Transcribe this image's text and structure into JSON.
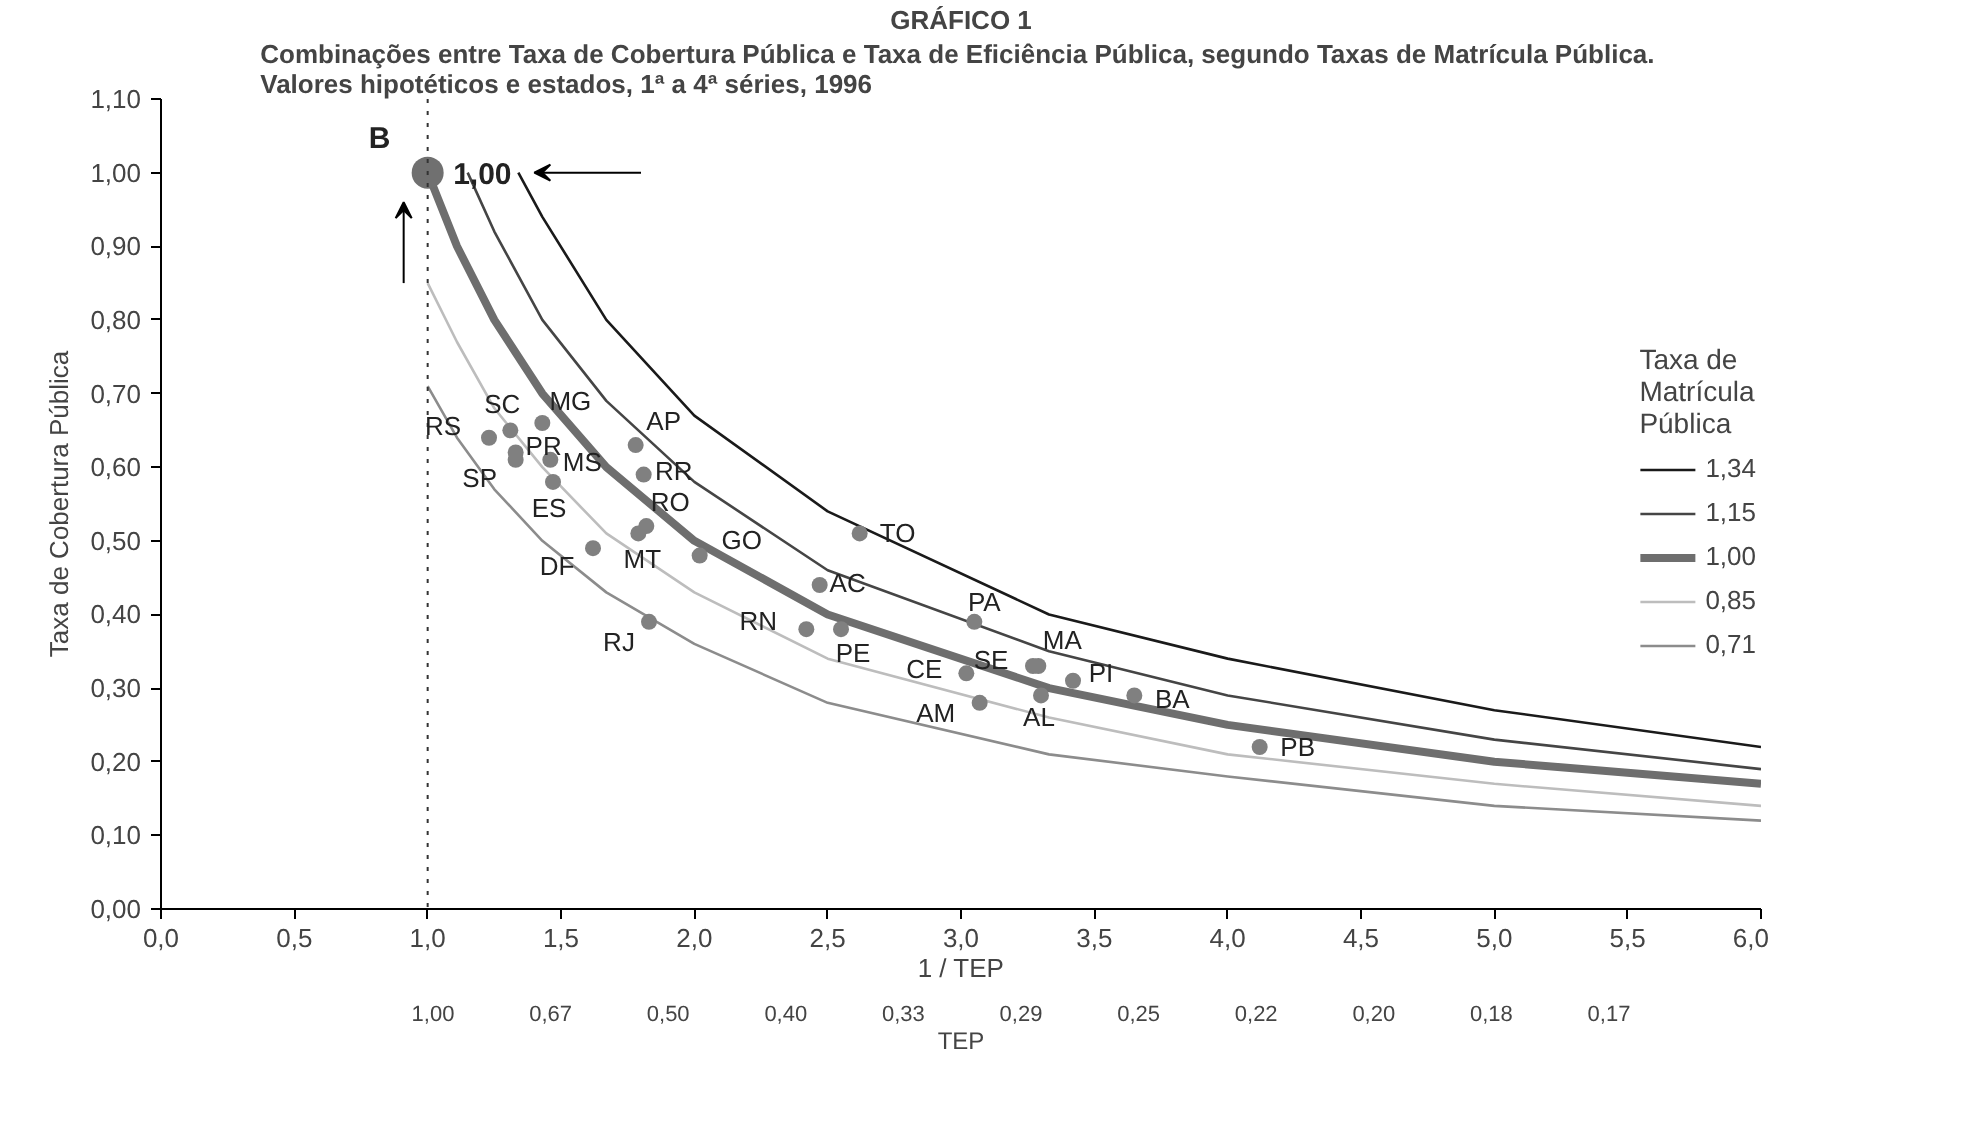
{
  "chart_data": {
    "type": "line",
    "title": "GRÁFICO 1",
    "subtitle": "Combinações entre Taxa de Cobertura  Pública e Taxa de Eficiência Pública, segundo Taxas de Matrícula Pública.\nValores hipotéticos e estados, 1ª a 4ª séries, 1996",
    "xlabel": "1 / TEP",
    "ylabel": "Taxa de Cobertura Pública",
    "legend_title": "Taxa de\nMatrícula\nPública",
    "legend": "right",
    "grid": false,
    "xlim": [
      0,
      6
    ],
    "ylim": [
      0,
      1.1
    ],
    "xticks": [
      {
        "value": 0,
        "label": "0,0"
      },
      {
        "value": 0.5,
        "label": "0,5"
      },
      {
        "value": 1,
        "label": "1,0"
      },
      {
        "value": 1.5,
        "label": "1,5"
      },
      {
        "value": 2,
        "label": "2,0"
      },
      {
        "value": 2.5,
        "label": "2,5"
      },
      {
        "value": 3,
        "label": "3,0"
      },
      {
        "value": 3.5,
        "label": "3,5"
      },
      {
        "value": 4,
        "label": "4,0"
      },
      {
        "value": 4.5,
        "label": "4,5"
      },
      {
        "value": 5,
        "label": "5,0"
      },
      {
        "value": 5.5,
        "label": "5,5"
      },
      {
        "value": 6,
        "label": "6,0"
      }
    ],
    "yticks": [
      {
        "value": 0,
        "label": "0,00"
      },
      {
        "value": 0.1,
        "label": "0,10"
      },
      {
        "value": 0.2,
        "label": "0,20"
      },
      {
        "value": 0.3,
        "label": "0,30"
      },
      {
        "value": 0.4,
        "label": "0,40"
      },
      {
        "value": 0.5,
        "label": "0,50"
      },
      {
        "value": 0.6,
        "label": "0,60"
      },
      {
        "value": 0.7,
        "label": "0,70"
      },
      {
        "value": 0.8,
        "label": "0,80"
      },
      {
        "value": 0.9,
        "label": "0,90"
      },
      {
        "value": 1.0,
        "label": "1,00"
      },
      {
        "value": 1.1,
        "label": "1,10"
      }
    ],
    "ref_lines": [
      {
        "axis": "x",
        "value": 1,
        "color": "#333333",
        "line_style": "dotted"
      }
    ],
    "series": [
      {
        "name": "1,34",
        "color": "#1a1a1a",
        "x": [
          1.34,
          1.43,
          1.67,
          2,
          2.5,
          3.33,
          4,
          5,
          6
        ],
        "values": [
          1.0,
          0.94,
          0.8,
          0.67,
          0.54,
          0.4,
          0.34,
          0.27,
          0.22
        ]
      },
      {
        "name": "1,15",
        "color": "#454545",
        "x": [
          1.15,
          1.25,
          1.43,
          1.67,
          2,
          2.5,
          3.33,
          4,
          5,
          6
        ],
        "values": [
          1.0,
          0.92,
          0.8,
          0.69,
          0.58,
          0.46,
          0.35,
          0.29,
          0.23,
          0.19
        ]
      },
      {
        "name": "1,00",
        "color": "#6e6e6e",
        "x": [
          1,
          1.11,
          1.25,
          1.43,
          1.67,
          2,
          2.5,
          3.33,
          4,
          5,
          6
        ],
        "values": [
          1.0,
          0.9,
          0.8,
          0.7,
          0.6,
          0.5,
          0.4,
          0.3,
          0.25,
          0.2,
          0.17
        ]
      },
      {
        "name": "0,85",
        "color": "#bdbdbd",
        "x": [
          1,
          1.11,
          1.25,
          1.43,
          1.67,
          2,
          2.5,
          3.33,
          4,
          5,
          6
        ],
        "values": [
          0.85,
          0.77,
          0.68,
          0.6,
          0.51,
          0.43,
          0.34,
          0.26,
          0.21,
          0.17,
          0.14
        ]
      },
      {
        "name": "0,71",
        "color": "#8c8c8c",
        "x": [
          1,
          1.11,
          1.25,
          1.43,
          1.67,
          2,
          2.5,
          3.33,
          4,
          5,
          6
        ],
        "values": [
          0.71,
          0.64,
          0.57,
          0.5,
          0.43,
          0.36,
          0.28,
          0.21,
          0.18,
          0.14,
          0.12
        ]
      },
      {
        "type": "bubble",
        "color": "#707070",
        "x": [
          1.0
        ],
        "values": [
          1.0
        ],
        "sizes": [
          1
        ]
      },
      {
        "type": "scatter",
        "marker": "circle",
        "color": "#808080",
        "x": [
          1.23,
          1.31,
          1.43,
          1.33,
          1.33,
          1.46,
          1.47,
          1.78,
          1.81,
          1.82,
          1.79,
          1.62,
          2.02,
          2.62,
          2.47,
          1.83,
          2.42,
          2.55,
          3.05,
          3.02,
          3.27,
          3.29,
          3.42,
          3.3,
          3.07,
          3.65,
          4.12
        ],
        "values": [
          0.64,
          0.65,
          0.66,
          0.62,
          0.61,
          0.61,
          0.58,
          0.63,
          0.59,
          0.52,
          0.51,
          0.49,
          0.48,
          0.51,
          0.44,
          0.39,
          0.38,
          0.38,
          0.39,
          0.32,
          0.33,
          0.33,
          0.31,
          0.29,
          0.28,
          0.29,
          0.22
        ]
      }
    ],
    "annotations": [
      {
        "text": "B",
        "x": 1.0,
        "y": 1.0
      },
      {
        "text": "1,00",
        "x": 1.34,
        "y": 1.0
      },
      {
        "text": "RS",
        "x": 1.23,
        "y": 0.64
      },
      {
        "text": "SC",
        "x": 1.31,
        "y": 0.65
      },
      {
        "text": "MG",
        "x": 1.43,
        "y": 0.66
      },
      {
        "text": "PR",
        "x": 1.33,
        "y": 0.62
      },
      {
        "text": "SP",
        "x": 1.33,
        "y": 0.61
      },
      {
        "text": "MS",
        "x": 1.46,
        "y": 0.61
      },
      {
        "text": "ES",
        "x": 1.47,
        "y": 0.58
      },
      {
        "text": "AP",
        "x": 1.78,
        "y": 0.63
      },
      {
        "text": "RR",
        "x": 1.81,
        "y": 0.59
      },
      {
        "text": "RO",
        "x": 1.82,
        "y": 0.52
      },
      {
        "text": "MT",
        "x": 1.79,
        "y": 0.51
      },
      {
        "text": "DF",
        "x": 1.62,
        "y": 0.49
      },
      {
        "text": "GO",
        "x": 2.02,
        "y": 0.48
      },
      {
        "text": "TO",
        "x": 2.62,
        "y": 0.51
      },
      {
        "text": "AC",
        "x": 2.47,
        "y": 0.44
      },
      {
        "text": "RJ",
        "x": 1.83,
        "y": 0.39
      },
      {
        "text": "RN",
        "x": 2.42,
        "y": 0.38
      },
      {
        "text": "PE",
        "x": 2.55,
        "y": 0.38
      },
      {
        "text": "PA",
        "x": 3.05,
        "y": 0.39
      },
      {
        "text": "CE",
        "x": 3.02,
        "y": 0.32
      },
      {
        "text": "SE",
        "x": 3.27,
        "y": 0.33
      },
      {
        "text": "MA",
        "x": 3.29,
        "y": 0.33
      },
      {
        "text": "PI",
        "x": 3.42,
        "y": 0.31
      },
      {
        "text": "AL",
        "x": 3.3,
        "y": 0.29
      },
      {
        "text": "AM",
        "x": 3.07,
        "y": 0.28
      },
      {
        "text": "BA",
        "x": 3.65,
        "y": 0.29
      },
      {
        "text": "PB",
        "x": 4.12,
        "y": 0.22
      },
      "1,00",
      "0,67",
      "0,50",
      "0,40",
      "0,33",
      "0,29",
      "0,25",
      "0,22",
      "0,20",
      "0,18",
      "0,17",
      "TEP"
    ]
  }
}
